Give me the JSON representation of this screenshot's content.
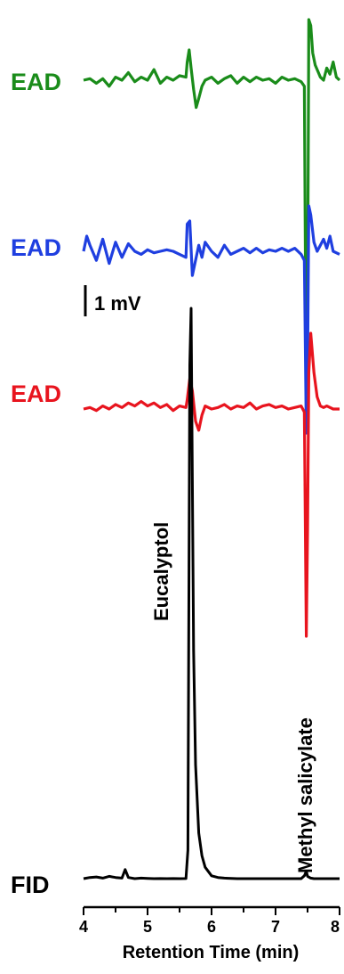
{
  "chart_data": {
    "type": "line",
    "xlabel": "Retention Time (min)",
    "xlim": [
      4,
      8
    ],
    "x_ticks": [
      "4",
      "5",
      "6",
      "7",
      "8"
    ],
    "scale_bar": "1 mV",
    "colors": {
      "ead1": "#1a8c1a",
      "ead2": "#1f3fe0",
      "ead3": "#e8141e",
      "fid": "#000000"
    },
    "series": [
      {
        "name": "EAD",
        "color": "#1a8c1a",
        "x": [
          4.0,
          4.1,
          4.2,
          4.3,
          4.4,
          4.5,
          4.6,
          4.7,
          4.8,
          4.9,
          5.0,
          5.1,
          5.2,
          5.3,
          5.4,
          5.5,
          5.6,
          5.62,
          5.65,
          5.68,
          5.72,
          5.76,
          5.8,
          5.85,
          5.9,
          6.0,
          6.1,
          6.2,
          6.3,
          6.4,
          6.5,
          6.6,
          6.7,
          6.8,
          6.9,
          7.0,
          7.1,
          7.2,
          7.3,
          7.4,
          7.45,
          7.48,
          7.5,
          7.52,
          7.55,
          7.58,
          7.62,
          7.66,
          7.7,
          7.75,
          7.8,
          7.85,
          7.9,
          7.95,
          8.0
        ],
        "values": [
          0.0,
          0.05,
          -0.1,
          0.05,
          -0.2,
          0.1,
          0.0,
          0.25,
          -0.05,
          0.1,
          0.0,
          0.35,
          -0.1,
          0.1,
          0.0,
          0.15,
          0.1,
          0.6,
          1.0,
          0.4,
          -0.3,
          -0.9,
          -0.6,
          -0.2,
          0.0,
          0.1,
          -0.1,
          0.05,
          0.15,
          -0.1,
          0.1,
          -0.05,
          0.1,
          0.0,
          0.05,
          -0.1,
          0.1,
          0.0,
          0.05,
          -0.05,
          -0.2,
          -11.0,
          -8.0,
          2.0,
          1.8,
          0.9,
          0.5,
          0.3,
          0.1,
          0.0,
          0.4,
          0.2,
          0.6,
          0.1,
          0.0
        ]
      },
      {
        "name": "EAD",
        "color": "#1f3fe0",
        "x": [
          4.0,
          4.05,
          4.1,
          4.2,
          4.3,
          4.4,
          4.5,
          4.6,
          4.7,
          4.8,
          4.9,
          5.0,
          5.1,
          5.2,
          5.3,
          5.4,
          5.5,
          5.6,
          5.62,
          5.66,
          5.7,
          5.75,
          5.8,
          5.85,
          5.9,
          6.0,
          6.1,
          6.2,
          6.3,
          6.4,
          6.5,
          6.6,
          6.7,
          6.8,
          6.9,
          7.0,
          7.1,
          7.2,
          7.3,
          7.4,
          7.45,
          7.48,
          7.5,
          7.52,
          7.55,
          7.6,
          7.65,
          7.7,
          7.75,
          7.8,
          7.85,
          7.9,
          8.0
        ],
        "values": [
          0.0,
          0.5,
          0.2,
          -0.3,
          0.4,
          -0.4,
          0.3,
          -0.2,
          0.25,
          0.0,
          -0.1,
          0.05,
          -0.05,
          0.0,
          0.05,
          0.0,
          -0.1,
          -0.2,
          0.9,
          1.0,
          -0.8,
          -0.3,
          0.2,
          -0.2,
          0.3,
          0.0,
          -0.2,
          0.2,
          -0.1,
          0.0,
          0.1,
          -0.05,
          0.1,
          -0.05,
          0.05,
          0.0,
          0.1,
          0.0,
          0.1,
          -0.1,
          -0.3,
          -6.0,
          -4.0,
          1.5,
          1.2,
          0.3,
          0.0,
          0.2,
          0.4,
          0.1,
          0.5,
          0.0,
          -0.1
        ]
      },
      {
        "name": "EAD",
        "color": "#e8141e",
        "x": [
          4.0,
          4.1,
          4.2,
          4.3,
          4.4,
          4.5,
          4.6,
          4.7,
          4.8,
          4.9,
          5.0,
          5.1,
          5.2,
          5.3,
          5.4,
          5.5,
          5.6,
          5.62,
          5.66,
          5.7,
          5.75,
          5.8,
          5.85,
          5.9,
          6.0,
          6.1,
          6.2,
          6.3,
          6.4,
          6.5,
          6.6,
          6.7,
          6.8,
          6.9,
          7.0,
          7.1,
          7.2,
          7.3,
          7.4,
          7.45,
          7.48,
          7.5,
          7.52,
          7.55,
          7.6,
          7.65,
          7.7,
          7.75,
          7.8,
          7.9,
          8.0
        ],
        "values": [
          0.0,
          0.05,
          -0.05,
          0.1,
          0.0,
          0.15,
          0.05,
          0.2,
          0.1,
          0.25,
          0.1,
          0.2,
          0.05,
          0.15,
          -0.05,
          0.1,
          0.05,
          0.3,
          1.0,
          0.6,
          -0.4,
          -0.7,
          -0.2,
          0.1,
          0.0,
          0.05,
          0.15,
          0.0,
          0.1,
          0.05,
          0.2,
          0.0,
          0.1,
          0.15,
          0.05,
          0.1,
          0.0,
          0.05,
          0.1,
          -0.1,
          -7.5,
          -4.0,
          1.2,
          2.5,
          1.2,
          0.4,
          0.1,
          0.05,
          0.1,
          0.0,
          0.0
        ]
      },
      {
        "name": "FID",
        "color": "#000000",
        "x": [
          4.0,
          4.1,
          4.2,
          4.3,
          4.4,
          4.5,
          4.6,
          4.65,
          4.7,
          4.8,
          4.9,
          5.0,
          5.1,
          5.2,
          5.3,
          5.4,
          5.5,
          5.6,
          5.63,
          5.66,
          5.68,
          5.7,
          5.72,
          5.75,
          5.8,
          5.85,
          5.9,
          6.0,
          6.1,
          6.2,
          6.4,
          6.6,
          6.8,
          7.0,
          7.2,
          7.4,
          7.45,
          7.48,
          7.5,
          7.55,
          7.6,
          7.8,
          8.0
        ],
        "values": [
          0.0,
          0.2,
          0.3,
          0.1,
          0.4,
          0.2,
          0.1,
          1.6,
          0.2,
          0.0,
          0.1,
          0.05,
          0.0,
          0.02,
          0.0,
          0.01,
          0.0,
          0.02,
          5.0,
          90.0,
          100.0,
          70.0,
          40.0,
          20.0,
          8.0,
          4.0,
          2.0,
          0.5,
          0.2,
          0.1,
          0.0,
          0.0,
          0.0,
          0.0,
          0.0,
          0.0,
          0.5,
          1.3,
          0.4,
          0.1,
          0.0,
          0.0,
          0.0
        ]
      }
    ]
  },
  "labels": {
    "ead_top": "EAD",
    "ead_middle": "EAD",
    "ead_bottom": "EAD",
    "fid": "FID",
    "scale_bar": "1 mV",
    "compound_1": "Eucalyptol",
    "compound_2": "Methyl salicylate",
    "xlabel": "Retention Time (min)"
  }
}
